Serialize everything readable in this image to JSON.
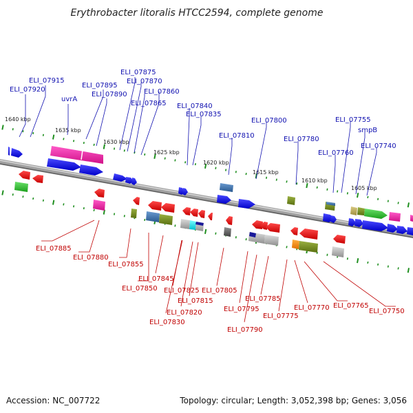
{
  "title": "Erythrobacter litoralis HTCC2594, complete genome",
  "accession": "Accession: NC_007722",
  "summary": "Topology: circular; Length: 3,052,398 bp; Genes: 3,056",
  "scale_labels": [
    "1640 kbp",
    "1635 kbp",
    "1630 kbp",
    "1625 kbp",
    "1620 kbp",
    "1615 kbp",
    "1610 kbp",
    "1605 kbp"
  ],
  "top_labels": [
    "ELI_07920",
    "ELI_07915",
    "uvrA",
    "ELI_07895",
    "ELI_07890",
    "ELI_07875",
    "ELI_07870",
    "ELI_07865",
    "ELI_07860",
    "ELI_07840",
    "ELI_07835",
    "ELI_07810",
    "ELI_07800",
    "ELI_07780",
    "ELI_07760",
    "ELI_07755",
    "smpB",
    "ELI_07740"
  ],
  "bottom_labels": [
    "ELI_07885",
    "ELI_07880",
    "ELI_07855",
    "ELI_07850",
    "ELI_07845",
    "ELI_07830",
    "ELI_07825",
    "ELI_07820",
    "ELI_07815",
    "ELI_07805",
    "ELI_07795",
    "ELI_07790",
    "ELI_07785",
    "ELI_07775",
    "ELI_07770",
    "ELI_07765",
    "ELI_07750"
  ],
  "colors": {
    "forward_strand": "#1515e0",
    "reverse_strand": "#e01010",
    "backbone": "#8a8a8a",
    "scale_ticks": "#1f8f1f"
  }
}
